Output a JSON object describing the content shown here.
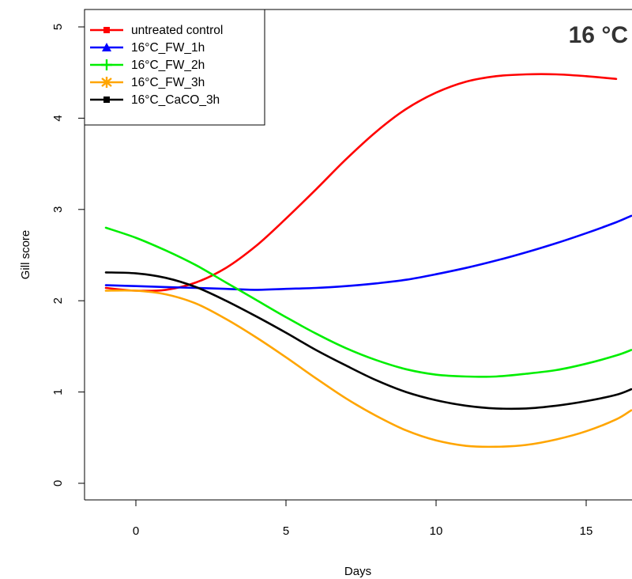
{
  "chart_data": {
    "type": "line",
    "title": "",
    "corner_label": "16 °C",
    "xlabel": "Days",
    "ylabel": "Gill score",
    "xlim": [
      -1,
      16.5
    ],
    "ylim": [
      -0.2,
      5.2
    ],
    "xticks": [
      0,
      5,
      10,
      15
    ],
    "yticks": [
      0,
      1,
      2,
      3,
      4,
      5
    ],
    "grid": false,
    "legend_position": "top-left",
    "series": [
      {
        "name": "untreated control",
        "color": "#ff0000",
        "marker": "square",
        "x": [
          -1,
          0,
          1,
          2,
          3,
          4,
          5,
          6,
          7,
          8,
          9,
          10,
          11,
          12,
          13,
          14,
          15,
          16
        ],
        "y": [
          2.14,
          2.11,
          2.12,
          2.2,
          2.36,
          2.6,
          2.9,
          3.22,
          3.55,
          3.85,
          4.1,
          4.28,
          4.4,
          4.46,
          4.48,
          4.48,
          4.46,
          4.43
        ]
      },
      {
        "name": "16°C_FW_1h",
        "color": "#0000ff",
        "marker": "triangle",
        "x": [
          -1,
          0,
          1,
          2,
          3,
          4,
          5,
          6,
          7,
          8,
          9,
          10,
          11,
          12,
          13,
          14,
          15,
          16,
          16.5
        ],
        "y": [
          2.17,
          2.16,
          2.15,
          2.14,
          2.13,
          2.12,
          2.13,
          2.14,
          2.16,
          2.19,
          2.23,
          2.29,
          2.36,
          2.44,
          2.53,
          2.63,
          2.74,
          2.86,
          2.93
        ]
      },
      {
        "name": "16°C_FW_2h",
        "color": "#00ee00",
        "marker": "plus",
        "x": [
          -1,
          0,
          1,
          2,
          3,
          4,
          5,
          6,
          7,
          8,
          9,
          10,
          11,
          12,
          13,
          14,
          15,
          16,
          16.5
        ],
        "y": [
          2.8,
          2.69,
          2.55,
          2.39,
          2.2,
          2.01,
          1.82,
          1.64,
          1.48,
          1.35,
          1.25,
          1.19,
          1.17,
          1.17,
          1.2,
          1.24,
          1.31,
          1.4,
          1.46
        ]
      },
      {
        "name": "16°C_FW_3h",
        "color": "#ffa500",
        "marker": "asterisk",
        "x": [
          -1,
          0,
          1,
          2,
          3,
          4,
          5,
          6,
          7,
          8,
          9,
          10,
          11,
          12,
          13,
          14,
          15,
          16,
          16.5
        ],
        "y": [
          2.11,
          2.11,
          2.07,
          1.97,
          1.8,
          1.6,
          1.38,
          1.15,
          0.93,
          0.74,
          0.58,
          0.47,
          0.41,
          0.4,
          0.42,
          0.48,
          0.57,
          0.7,
          0.8
        ]
      },
      {
        "name": "16°C_CaCO_3h",
        "color": "#000000",
        "marker": "square",
        "x": [
          -1,
          0,
          1,
          2,
          3,
          4,
          5,
          6,
          7,
          8,
          9,
          10,
          11,
          12,
          13,
          14,
          15,
          16,
          16.5
        ],
        "y": [
          2.31,
          2.3,
          2.25,
          2.15,
          2.0,
          1.83,
          1.65,
          1.46,
          1.29,
          1.13,
          1.0,
          0.91,
          0.85,
          0.82,
          0.82,
          0.85,
          0.9,
          0.97,
          1.03
        ]
      }
    ]
  }
}
